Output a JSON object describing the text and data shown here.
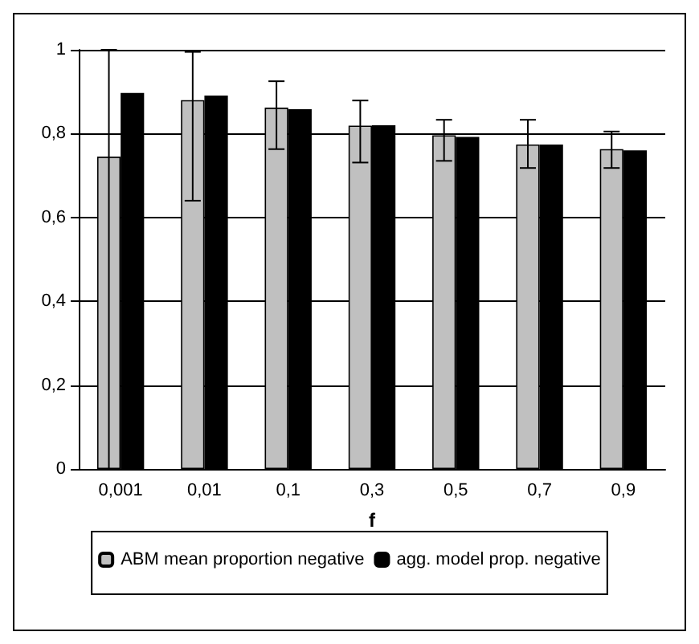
{
  "chart_data": {
    "type": "bar",
    "xlabel": "f",
    "categories": [
      "0,001",
      "0,01",
      "0,1",
      "0,3",
      "0,5",
      "0,7",
      "0,9"
    ],
    "series": [
      {
        "name": "ABM mean proportion negative",
        "color": "#c0c0c0",
        "values": [
          0.745,
          0.88,
          0.862,
          0.819,
          0.796,
          0.774,
          0.763
        ],
        "errors": [
          [
            0,
            1
          ],
          [
            0.64,
            0.995
          ],
          [
            0.763,
            0.925
          ],
          [
            0.731,
            0.879
          ],
          [
            0.735,
            0.833
          ],
          [
            0.718,
            0.833
          ],
          [
            0.718,
            0.805
          ]
        ]
      },
      {
        "name": "agg. model prop. negative",
        "color": "#000000",
        "values": [
          0.897,
          0.891,
          0.858,
          0.82,
          0.792,
          0.774,
          0.76
        ]
      }
    ],
    "ylim": [
      0,
      1
    ],
    "yticks": [
      0,
      {
        "value": 0.2,
        "label": "0,2"
      },
      {
        "value": 0.4,
        "label": "0,4"
      },
      {
        "value": 0.6,
        "label": "0,6"
      },
      {
        "value": 0.8,
        "label": "0,8"
      },
      1
    ],
    "grid": "y",
    "legend": "bottom"
  }
}
